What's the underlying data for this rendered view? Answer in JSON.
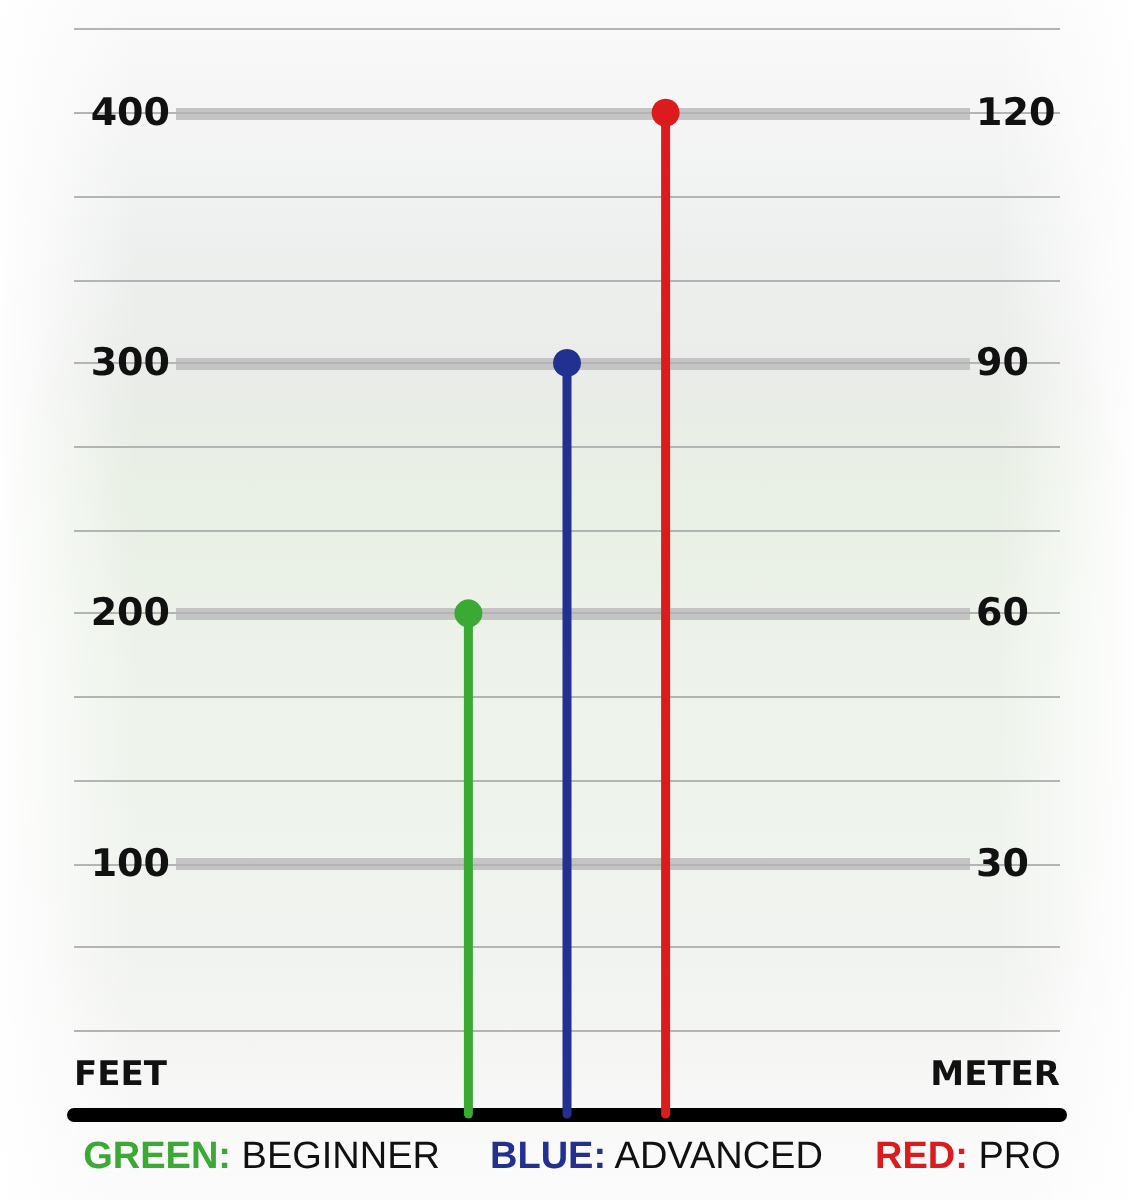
{
  "chart_data": {
    "type": "lollipop",
    "ylabel": "FEET",
    "y2label": "METER",
    "categories": [
      null,
      null,
      null,
      null,
      null,
      null,
      null,
      null,
      null,
      null,
      null
    ],
    "ylim": [
      0,
      445
    ],
    "yticks": [
      100,
      200,
      300,
      400
    ],
    "y2lim": [
      0,
      133.5
    ],
    "y2ticks": [
      30,
      60,
      90,
      120
    ],
    "grid": "y",
    "legend": "bottom",
    "marker": "circle",
    "series": [
      {
        "name": "GREEN: BEGINNER",
        "color": "#3aaa35",
        "values": [
          null,
          null,
          null,
          null,
          200,
          null,
          null,
          null,
          null,
          null,
          null
        ]
      },
      {
        "name": "BLUE: ADVANCED",
        "color": "#22308f",
        "values": [
          null,
          null,
          null,
          null,
          null,
          300,
          null,
          null,
          null,
          null,
          null
        ]
      },
      {
        "name": "RED: PRO",
        "color": "#dc1c1c",
        "values": [
          null,
          null,
          null,
          null,
          null,
          null,
          400,
          null,
          null,
          null,
          null
        ]
      }
    ]
  }
}
